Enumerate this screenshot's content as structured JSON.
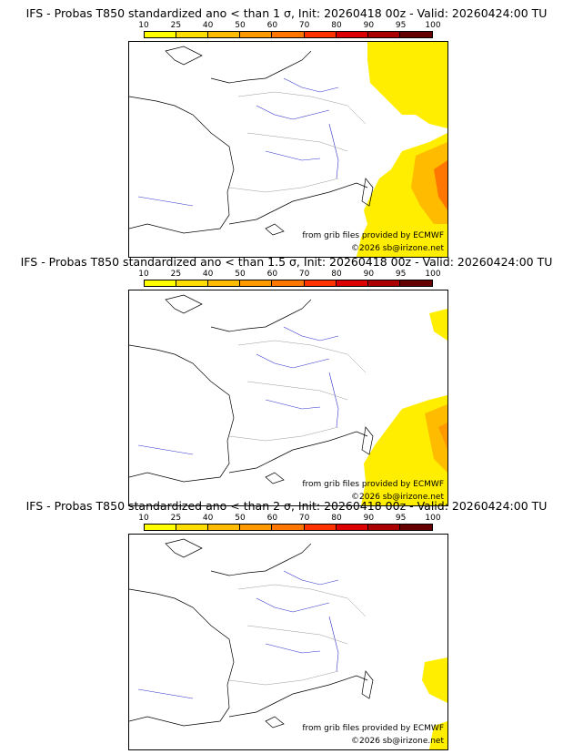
{
  "scale": {
    "labels": [
      "10",
      "25",
      "40",
      "50",
      "60",
      "70",
      "80",
      "90",
      "95",
      "100"
    ],
    "colors": [
      "#ffff00",
      "#ffdd00",
      "#ffbb00",
      "#ff9900",
      "#ff7700",
      "#ff3300",
      "#dd0000",
      "#aa0000",
      "#660000"
    ]
  },
  "panels": [
    {
      "title": "IFS - Probas T850  standardized ano < than 1 σ, Init: 20260418 00z - Valid: 20260424:00 TU",
      "credit_source": "from grib files provided by ECMWF",
      "credit_copyright": "©2026 sb@irizone.net"
    },
    {
      "title": "IFS - Probas T850  standardized ano < than 1.5 σ, Init: 20260418 00z - Valid: 20260424:00 TU",
      "credit_source": "from grib files provided by ECMWF",
      "credit_copyright": "©2026 sb@irizone.net"
    },
    {
      "title": "IFS - Probas T850  standardized ano < than 2 σ, Init: 20260418 00z - Valid: 20260424:00 TU",
      "credit_source": "from grib files provided by ECMWF",
      "credit_copyright": "©2026 sb@irizone.net"
    }
  ]
}
